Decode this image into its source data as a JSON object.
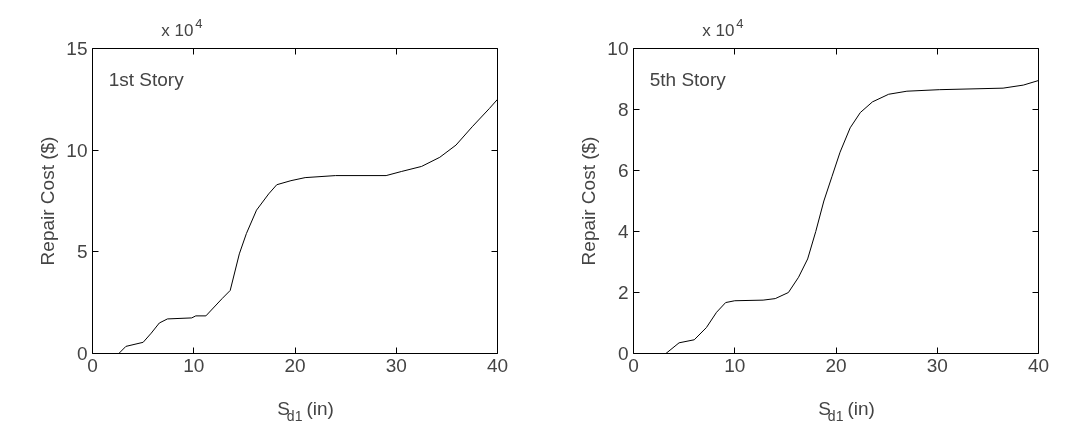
{
  "chart_data": [
    {
      "type": "line",
      "title": "1st Story",
      "xlabel": "S$_{d1}$ (in)",
      "ylabel": "Repair Cost ($)",
      "annotations": [
        "x 10$^{4}$"
      ],
      "xlim": [
        0,
        40
      ],
      "xticks": [
        0,
        10,
        20,
        30,
        40
      ],
      "ylim": [
        0,
        15
      ],
      "yticks": [
        0,
        5,
        10,
        15
      ],
      "grid": false,
      "line_style": "solid",
      "series": [
        {
          "color": "#000000",
          "x": [
            0.9,
            2.6,
            3.3,
            5,
            5.8,
            6.6,
            7.4,
            9.8,
            10.2,
            11.2,
            12.8,
            13.6,
            14.5,
            15.2,
            16.2,
            17.4,
            18.2,
            19.6,
            21,
            24,
            29,
            30.5,
            32.5,
            34.3,
            35.9,
            37.5,
            39.2,
            40
          ],
          "values": [
            0,
            0,
            0.35,
            0.55,
            1.0,
            1.5,
            1.7,
            1.75,
            1.85,
            1.85,
            2.7,
            3.1,
            4.9,
            5.9,
            7.05,
            7.85,
            8.3,
            8.5,
            8.65,
            8.75,
            8.75,
            8.95,
            9.2,
            9.65,
            10.25,
            11.15,
            12.05,
            12.5
          ]
        }
      ]
    },
    {
      "type": "line",
      "title": "5th Story",
      "xlabel": "S$_{d1}$ (in)",
      "ylabel": "Repair Cost ($)",
      "annotations": [
        "x 10$^{4}$"
      ],
      "xlim": [
        0,
        40
      ],
      "xticks": [
        0,
        10,
        20,
        30,
        40
      ],
      "ylim": [
        0,
        10
      ],
      "yticks": [
        0,
        2,
        4,
        6,
        8,
        10
      ],
      "grid": false,
      "line_style": "solid",
      "series": [
        {
          "color": "#000000",
          "x": [
            1.3,
            3.2,
            4.5,
            6,
            7.2,
            8.2,
            9.1,
            10,
            12.8,
            14,
            15.3,
            16.3,
            17.2,
            18,
            18.8,
            19.6,
            20.4,
            21.4,
            22.4,
            23.6,
            25.2,
            27,
            30.2,
            36.5,
            38.5,
            40
          ],
          "values": [
            0,
            0,
            0.35,
            0.45,
            0.85,
            1.35,
            1.67,
            1.73,
            1.75,
            1.8,
            2.0,
            2.5,
            3.1,
            4.0,
            5.0,
            5.8,
            6.6,
            7.4,
            7.9,
            8.25,
            8.5,
            8.6,
            8.65,
            8.7,
            8.8,
            8.95
          ]
        }
      ]
    }
  ]
}
